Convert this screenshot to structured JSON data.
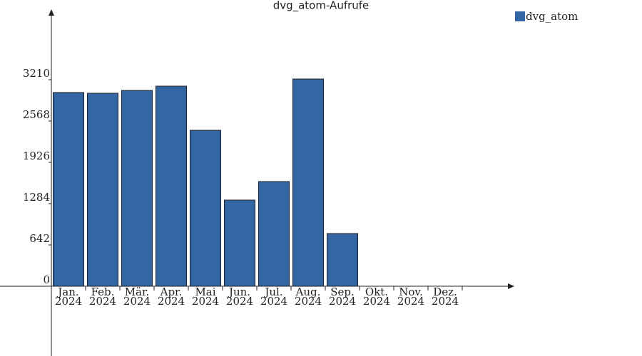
{
  "chart_data": {
    "type": "bar",
    "title": "dvg_atom-Aufrufe",
    "categories": [
      "Jan.\n2024",
      "Feb.\n2024",
      "Mär.\n2024",
      "Apr.\n2024",
      "Mai\n2024",
      "Jun.\n2024",
      "Jul.\n2024",
      "Aug.\n2024",
      "Sep.\n2024",
      "Okt.\n2024",
      "Nov.\n2024",
      "Dez.\n2024"
    ],
    "series": [
      {
        "name": "dvg_atom",
        "color": "#3465a4",
        "values": [
          3011,
          3000,
          3044,
          3110,
          2424,
          1339,
          1627,
          3221,
          819,
          null,
          null,
          null
        ]
      }
    ],
    "ylim": [
      0,
      4250
    ],
    "yticks": [
      0,
      642,
      1284,
      1926,
      2568,
      3210
    ],
    "grid": false
  }
}
